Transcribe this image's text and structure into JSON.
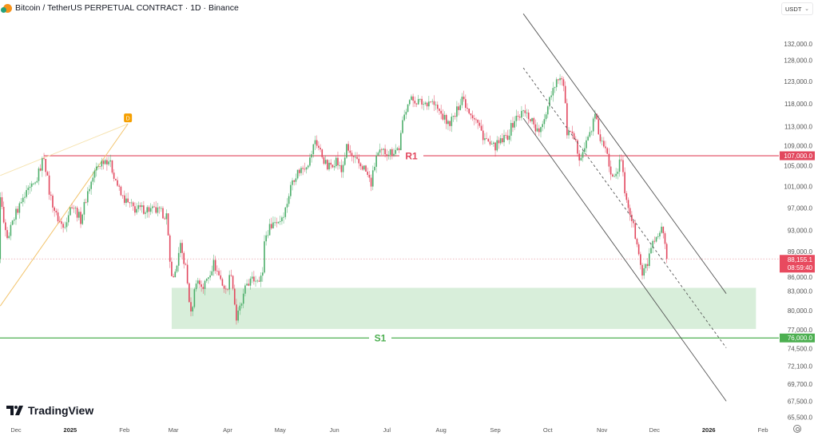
{
  "header": {
    "title": "Bitcoin / TetherUS PERPETUAL CONTRACT · 1D · Binance",
    "currency": "USDT"
  },
  "brand": {
    "name": "TradingView"
  },
  "colors": {
    "up": "#4cae6a",
    "down": "#e2475e",
    "resistance": "#e2475e",
    "support": "#4caf50",
    "zone": "#d4ecd6",
    "channel": "#555555",
    "fib": "#f2c36b",
    "badge": "#f59f00"
  },
  "chart_data": {
    "type": "candlestick",
    "title": "Bitcoin / TetherUS PERPETUAL CONTRACT · 1D · Binance",
    "scale": "log",
    "ylim": [
      64500,
      143000
    ],
    "x_unit": "days since 2024-12-01",
    "xlim": [
      -9,
      418
    ],
    "price_ticks": [
      132000,
      128000,
      123000,
      118000,
      113000,
      109000,
      105000,
      101000,
      97000,
      93000,
      89000,
      86000,
      83000,
      80000,
      77000,
      74500,
      72100,
      69700,
      67500,
      65500
    ],
    "price_tick_labels": [
      "132,000.0",
      "128,000.0",
      "123,000.0",
      "118,000.0",
      "113,000.0",
      "109,000.0",
      "105,000.0",
      "101,000.0",
      "97,000.0",
      "93,000.0",
      "89,000.0",
      "86,000.0",
      "83,000.0",
      "80,000.0",
      "77,000.0",
      "74,500.0",
      "72,100.0",
      "69,700.0",
      "67,500.0",
      "65,500.0"
    ],
    "time_ticks": [
      {
        "label": "Dec",
        "day": 0,
        "bold": false
      },
      {
        "label": "2025",
        "day": 31,
        "bold": true
      },
      {
        "label": "Feb",
        "day": 62,
        "bold": false
      },
      {
        "label": "Mar",
        "day": 90,
        "bold": false
      },
      {
        "label": "Apr",
        "day": 121,
        "bold": false
      },
      {
        "label": "May",
        "day": 151,
        "bold": false
      },
      {
        "label": "Jun",
        "day": 182,
        "bold": false
      },
      {
        "label": "Jul",
        "day": 212,
        "bold": false
      },
      {
        "label": "Aug",
        "day": 243,
        "bold": false
      },
      {
        "label": "Sep",
        "day": 274,
        "bold": false
      },
      {
        "label": "Oct",
        "day": 304,
        "bold": false
      },
      {
        "label": "Nov",
        "day": 335,
        "bold": false
      },
      {
        "label": "Dec",
        "day": 365,
        "bold": false
      },
      {
        "label": "2026",
        "day": 396,
        "bold": true
      },
      {
        "label": "Feb",
        "day": 427,
        "bold": false
      }
    ],
    "close_path": [
      [
        -9,
        98500
      ],
      [
        -5,
        91400
      ],
      [
        0,
        96300
      ],
      [
        7,
        100000
      ],
      [
        11,
        101500
      ],
      [
        16,
        107000
      ],
      [
        19,
        100000
      ],
      [
        23,
        95600
      ],
      [
        27,
        93500
      ],
      [
        32,
        97800
      ],
      [
        37,
        94900
      ],
      [
        41,
        100000
      ],
      [
        46,
        104600
      ],
      [
        50,
        106200
      ],
      [
        53,
        106200
      ],
      [
        57,
        102300
      ],
      [
        60,
        99300
      ],
      [
        64,
        97800
      ],
      [
        68,
        96800
      ],
      [
        75,
        96800
      ],
      [
        82,
        96300
      ],
      [
        86,
        95600
      ],
      [
        88,
        87400
      ],
      [
        90,
        84800
      ],
      [
        94,
        90100
      ],
      [
        97,
        86700
      ],
      [
        100,
        79300
      ],
      [
        103,
        84800
      ],
      [
        107,
        83600
      ],
      [
        113,
        87400
      ],
      [
        116,
        85500
      ],
      [
        120,
        82900
      ],
      [
        123,
        86100
      ],
      [
        126,
        78700
      ],
      [
        129,
        81100
      ],
      [
        132,
        84200
      ],
      [
        136,
        84800
      ],
      [
        141,
        85500
      ],
      [
        142,
        91400
      ],
      [
        146,
        94200
      ],
      [
        151,
        94900
      ],
      [
        154,
        96800
      ],
      [
        158,
        102300
      ],
      [
        161,
        103800
      ],
      [
        164,
        104600
      ],
      [
        168,
        106200
      ],
      [
        171,
        110300
      ],
      [
        174,
        107800
      ],
      [
        178,
        104600
      ],
      [
        183,
        106200
      ],
      [
        186,
        103800
      ],
      [
        189,
        108600
      ],
      [
        193,
        106200
      ],
      [
        199,
        104600
      ],
      [
        203,
        101500
      ],
      [
        206,
        107000
      ],
      [
        210,
        107800
      ],
      [
        215,
        107800
      ],
      [
        219,
        108600
      ],
      [
        221,
        113600
      ],
      [
        224,
        118800
      ],
      [
        228,
        118800
      ],
      [
        233,
        118000
      ],
      [
        237,
        118800
      ],
      [
        242,
        116200
      ],
      [
        247,
        113600
      ],
      [
        251,
        115300
      ],
      [
        255,
        119700
      ],
      [
        258,
        117100
      ],
      [
        263,
        114500
      ],
      [
        267,
        111100
      ],
      [
        272,
        108600
      ],
      [
        276,
        109400
      ],
      [
        281,
        111100
      ],
      [
        285,
        114500
      ],
      [
        290,
        116200
      ],
      [
        295,
        114500
      ],
      [
        298,
        111900
      ],
      [
        301,
        112800
      ],
      [
        305,
        119700
      ],
      [
        310,
        124300
      ],
      [
        313,
        122500
      ],
      [
        315,
        111900
      ],
      [
        319,
        110300
      ],
      [
        322,
        107000
      ],
      [
        325,
        108600
      ],
      [
        329,
        112800
      ],
      [
        331,
        115300
      ],
      [
        334,
        110300
      ],
      [
        338,
        107000
      ],
      [
        340,
        103800
      ],
      [
        343,
        103800
      ],
      [
        346,
        106200
      ],
      [
        348,
        100000
      ],
      [
        352,
        94900
      ],
      [
        354,
        92100
      ],
      [
        356,
        88700
      ],
      [
        358,
        85500
      ],
      [
        361,
        87400
      ],
      [
        363,
        90100
      ],
      [
        365,
        90700
      ],
      [
        367,
        91400
      ],
      [
        369,
        93500
      ],
      [
        371,
        90100
      ],
      [
        372,
        88155.1
      ]
    ],
    "last_price": {
      "value": 88155.1,
      "label": "88,155.1",
      "countdown": "08:59:40"
    },
    "resistance": {
      "name": "R1",
      "price": 107000,
      "price_label": "107,000.0",
      "from_day": 16
    },
    "support": {
      "name": "S1",
      "price": 76000,
      "price_label": "76,000.0"
    },
    "demand_zone": {
      "top": 83500,
      "bottom": 77300,
      "from_day": 89,
      "to_day": 423
    },
    "channel": {
      "upper": [
        [
          290,
          139700
        ],
        [
          406,
          82600
        ]
      ],
      "middle": [
        [
          290,
          126200
        ],
        [
          406,
          74600
        ]
      ],
      "lower": [
        [
          290,
          114800
        ],
        [
          406,
          67500
        ]
      ]
    },
    "fib_lines": {
      "label": "D",
      "apex": [
        64,
        113600
      ],
      "line_a_start": [
        -9,
        103100
      ],
      "line_b_start": [
        -9,
        80700
      ]
    }
  }
}
